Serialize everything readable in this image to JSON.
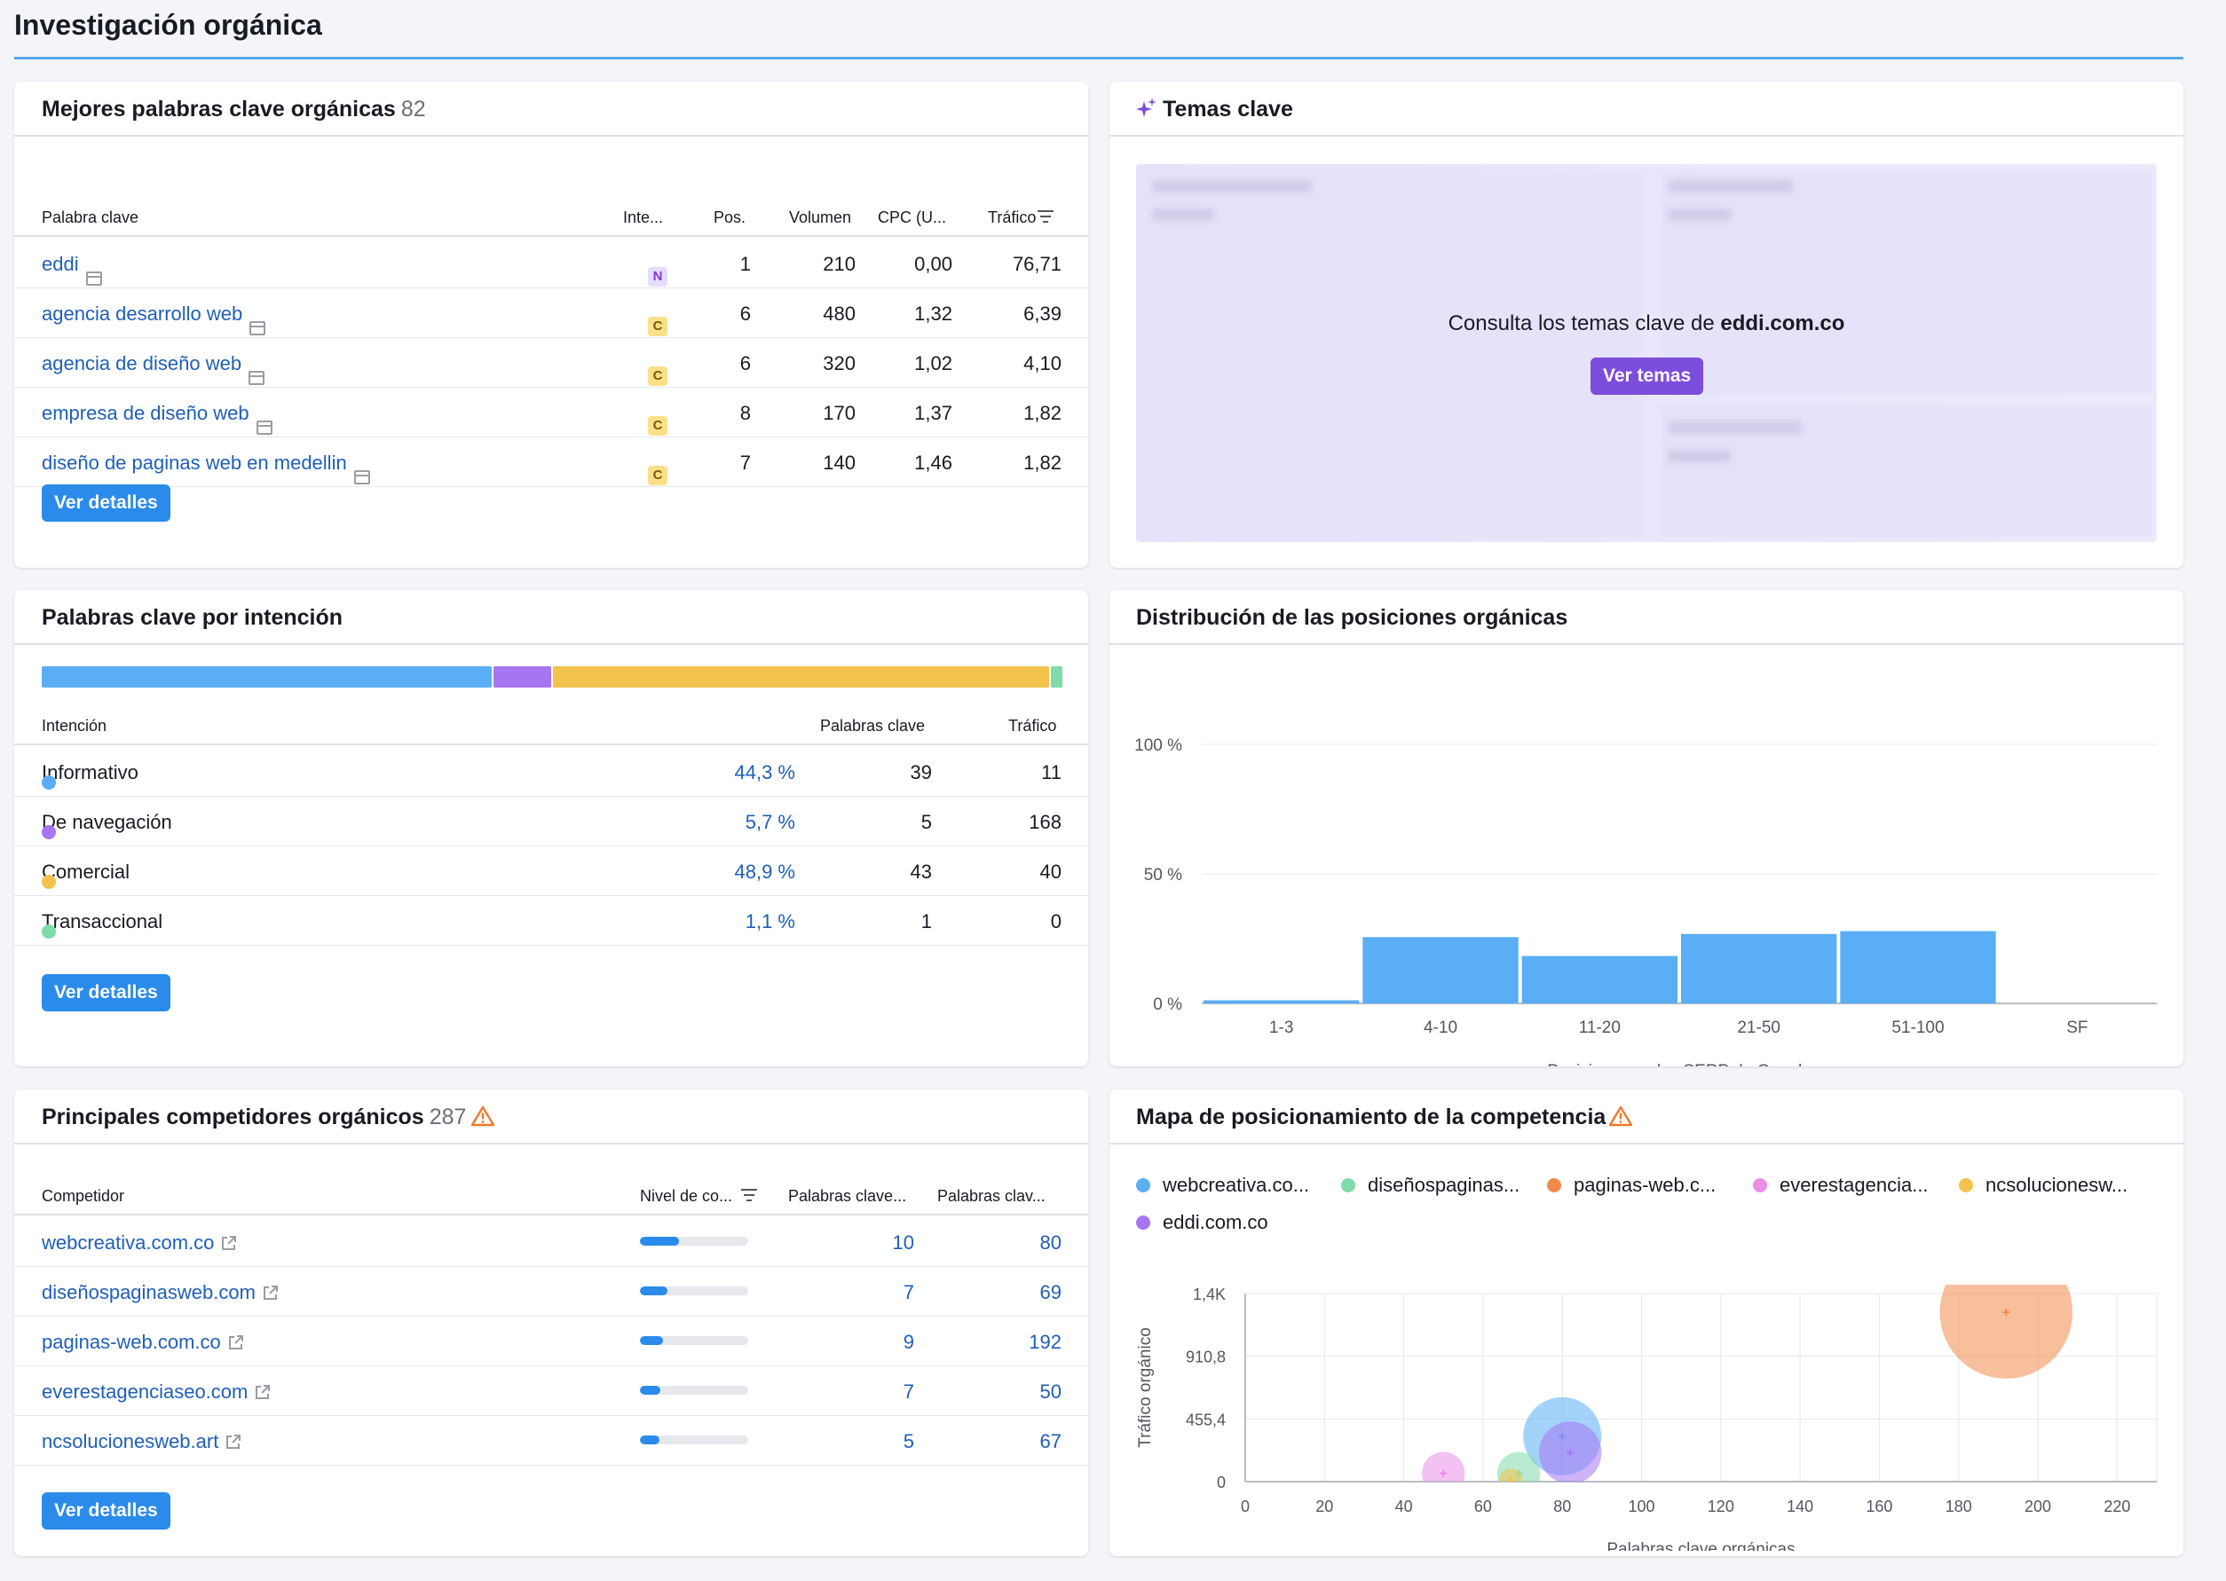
{
  "page": {
    "title": "Investigación orgánica"
  },
  "keywords_card": {
    "title": "Mejores palabras clave orgánicas",
    "count": "82",
    "columns": {
      "keyword": "Palabra clave",
      "intent": "Inte...",
      "pos": "Pos.",
      "volume": "Volumen",
      "cpc": "CPC (U...",
      "traffic": "Tráfico"
    },
    "rows": [
      {
        "keyword": "eddi",
        "intent": "N",
        "pos": "1",
        "volume": "210",
        "cpc": "0,00",
        "traffic": "76,71"
      },
      {
        "keyword": "agencia desarrollo web",
        "intent": "C",
        "pos": "6",
        "volume": "480",
        "cpc": "1,32",
        "traffic": "6,39"
      },
      {
        "keyword": "agencia de diseño web",
        "intent": "C",
        "pos": "6",
        "volume": "320",
        "cpc": "1,02",
        "traffic": "4,10"
      },
      {
        "keyword": "empresa de diseño web",
        "intent": "C",
        "pos": "8",
        "volume": "170",
        "cpc": "1,37",
        "traffic": "1,82"
      },
      {
        "keyword": "diseño de paginas web en medellin",
        "intent": "C",
        "pos": "7",
        "volume": "140",
        "cpc": "1,46",
        "traffic": "1,82"
      }
    ],
    "button": "Ver detalles"
  },
  "topics_card": {
    "title": "Temas clave",
    "message_prefix": "Consulta los temas clave de",
    "domain": "eddi.com.co",
    "button": "Ver temas"
  },
  "intent_card": {
    "title": "Palabras clave por intención",
    "columns": {
      "intent": "Intención",
      "keywords": "Palabras clave",
      "traffic": "Tráfico"
    },
    "rows": [
      {
        "label": "Informativo",
        "percent": "44,3 %",
        "share": 44.3,
        "keywords": "39",
        "traffic": "11",
        "color": "#59aef5"
      },
      {
        "label": "De navegación",
        "percent": "5,7 %",
        "share": 5.7,
        "keywords": "5",
        "traffic": "168",
        "color": "#a675f2"
      },
      {
        "label": "Comercial",
        "percent": "48,9 %",
        "share": 48.9,
        "keywords": "43",
        "traffic": "40",
        "color": "#f3c34e"
      },
      {
        "label": "Transaccional",
        "percent": "1,1 %",
        "share": 1.1,
        "keywords": "1",
        "traffic": "0",
        "color": "#7fdbaa"
      }
    ],
    "button": "Ver detalles"
  },
  "positions_card": {
    "title": "Distribución de las posiciones orgánicas"
  },
  "competitors_card": {
    "title": "Principales competidores orgánicos",
    "count": "287",
    "columns": {
      "competitor": "Competidor",
      "level": "Nivel de co...",
      "common": "Palabras clave...",
      "organic": "Palabras clav..."
    },
    "rows": [
      {
        "domain": "webcreativa.com.co",
        "level": 0.36,
        "common": "10",
        "organic": "80"
      },
      {
        "domain": "diseñospaginasweb.com",
        "level": 0.25,
        "common": "7",
        "organic": "69"
      },
      {
        "domain": "paginas-web.com.co",
        "level": 0.21,
        "common": "9",
        "organic": "192"
      },
      {
        "domain": "everestagenciaseo.com",
        "level": 0.19,
        "common": "7",
        "organic": "50"
      },
      {
        "domain": "ncsolucionesweb.art",
        "level": 0.18,
        "common": "5",
        "organic": "67"
      }
    ],
    "button": "Ver detalles"
  },
  "map_card": {
    "title": "Mapa de posicionamiento de la competencia",
    "legend": [
      {
        "label": "webcreativa.co...",
        "color": "#59aef5"
      },
      {
        "label": "diseñospaginas...",
        "color": "#7fdbaa"
      },
      {
        "label": "paginas-web.c...",
        "color": "#f28a4b"
      },
      {
        "label": "everestagencia...",
        "color": "#ea8ee8"
      },
      {
        "label": "ncsolucionesw...",
        "color": "#f3c34e"
      },
      {
        "label": "eddi.com.co",
        "color": "#a675f2"
      }
    ]
  },
  "chart_data": [
    {
      "type": "bar",
      "title": "Distribución de las posiciones orgánicas",
      "categories": [
        "1-3",
        "4-10",
        "11-20",
        "21-50",
        "51-100",
        "SF"
      ],
      "values": [
        1.2,
        25.6,
        18.3,
        26.8,
        27.9,
        0
      ],
      "y_ticks": [
        "0 %",
        "50 %",
        "100 %"
      ],
      "xlabel": "Posiciones en las SERP de Google",
      "ylim": [
        0,
        100
      ],
      "color": "#59aef5",
      "grid": true
    },
    {
      "type": "scatter",
      "title": "Mapa de posicionamiento de la competencia",
      "xlabel": "Palabras clave orgánicas",
      "ylabel": "Tráfico orgánico",
      "x_ticks": [
        "0",
        "20",
        "40",
        "60",
        "80",
        "100",
        "120",
        "140",
        "160",
        "180",
        "200",
        "220"
      ],
      "y_ticks": [
        "0",
        "455,4",
        "910,8",
        "1,4K"
      ],
      "xlim": [
        0,
        230
      ],
      "ylim": [
        0,
        1366
      ],
      "grid": true,
      "points": [
        {
          "name": "webcreativa.com.co",
          "x": 80,
          "y": 330,
          "size": 1.0,
          "color": "#59aef5"
        },
        {
          "name": "diseñospaginasweb.com",
          "x": 69,
          "y": 60,
          "size": 0.55,
          "color": "#7fdbaa"
        },
        {
          "name": "paginas-web.com.co",
          "x": 192,
          "y": 1230,
          "size": 1.7,
          "color": "#f28a4b"
        },
        {
          "name": "everestagenciaseo.com",
          "x": 50,
          "y": 60,
          "size": 0.55,
          "color": "#ea8ee8"
        },
        {
          "name": "ncsolucionesweb.art",
          "x": 67,
          "y": 10,
          "size": 0.3,
          "color": "#f3c34e"
        },
        {
          "name": "eddi.com.co",
          "x": 82,
          "y": 210,
          "size": 0.8,
          "color": "#a675f2"
        }
      ]
    }
  ]
}
